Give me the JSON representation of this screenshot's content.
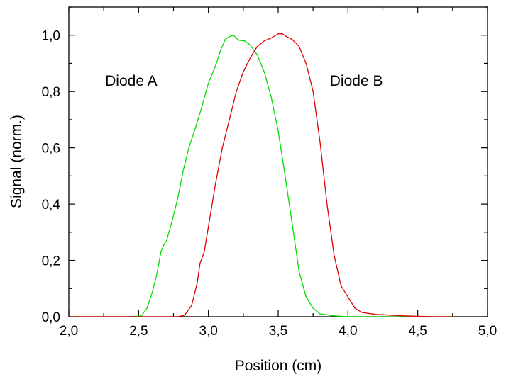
{
  "chart_data": {
    "type": "line",
    "title": "",
    "xlabel": "Position (cm)",
    "ylabel": "Signal (norm.)",
    "xlim": [
      2.0,
      5.0
    ],
    "ylim": [
      0.0,
      1.1
    ],
    "x_ticks": [
      "2,0",
      "2,5",
      "3,0",
      "3,5",
      "4,0",
      "4,5",
      "5,0"
    ],
    "x_tick_values": [
      2.0,
      2.5,
      3.0,
      3.5,
      4.0,
      4.5,
      5.0
    ],
    "y_ticks": [
      "0,0",
      "0,2",
      "0,4",
      "0,6",
      "0,8",
      "1,0"
    ],
    "y_tick_values": [
      0.0,
      0.2,
      0.4,
      0.6,
      0.8,
      1.0
    ],
    "grid": false,
    "series": [
      {
        "name": "Diode A",
        "color": "#00dd00",
        "points": [
          [
            2.0,
            0.0
          ],
          [
            2.45,
            0.0
          ],
          [
            2.52,
            0.003
          ],
          [
            2.56,
            0.03
          ],
          [
            2.6,
            0.09
          ],
          [
            2.63,
            0.15
          ],
          [
            2.66,
            0.23
          ],
          [
            2.68,
            0.255
          ],
          [
            2.7,
            0.27
          ],
          [
            2.74,
            0.34
          ],
          [
            2.78,
            0.42
          ],
          [
            2.82,
            0.52
          ],
          [
            2.86,
            0.6
          ],
          [
            2.9,
            0.66
          ],
          [
            2.95,
            0.74
          ],
          [
            3.0,
            0.83
          ],
          [
            3.05,
            0.89
          ],
          [
            3.09,
            0.95
          ],
          [
            3.12,
            0.985
          ],
          [
            3.15,
            0.995
          ],
          [
            3.18,
            1.0
          ],
          [
            3.2,
            0.99
          ],
          [
            3.22,
            0.982
          ],
          [
            3.26,
            0.98
          ],
          [
            3.3,
            0.965
          ],
          [
            3.35,
            0.93
          ],
          [
            3.4,
            0.87
          ],
          [
            3.45,
            0.78
          ],
          [
            3.5,
            0.66
          ],
          [
            3.55,
            0.5
          ],
          [
            3.6,
            0.33
          ],
          [
            3.65,
            0.16
          ],
          [
            3.7,
            0.07
          ],
          [
            3.75,
            0.03
          ],
          [
            3.8,
            0.01
          ],
          [
            3.9,
            0.003
          ],
          [
            4.0,
            0.0
          ],
          [
            4.75,
            0.0
          ]
        ],
        "label": {
          "text": "Diode A",
          "x": 2.26,
          "y": 0.82
        }
      },
      {
        "name": "Diode B",
        "color": "#dd0000",
        "points": [
          [
            2.0,
            0.0
          ],
          [
            2.78,
            0.0
          ],
          [
            2.83,
            0.005
          ],
          [
            2.88,
            0.04
          ],
          [
            2.92,
            0.12
          ],
          [
            2.94,
            0.19
          ],
          [
            2.97,
            0.23
          ],
          [
            3.0,
            0.32
          ],
          [
            3.05,
            0.47
          ],
          [
            3.1,
            0.6
          ],
          [
            3.15,
            0.7
          ],
          [
            3.2,
            0.8
          ],
          [
            3.25,
            0.87
          ],
          [
            3.3,
            0.92
          ],
          [
            3.35,
            0.96
          ],
          [
            3.4,
            0.98
          ],
          [
            3.45,
            0.99
          ],
          [
            3.5,
            1.005
          ],
          [
            3.53,
            1.005
          ],
          [
            3.56,
            0.995
          ],
          [
            3.6,
            0.985
          ],
          [
            3.65,
            0.96
          ],
          [
            3.7,
            0.9
          ],
          [
            3.75,
            0.8
          ],
          [
            3.8,
            0.62
          ],
          [
            3.85,
            0.4
          ],
          [
            3.9,
            0.22
          ],
          [
            3.95,
            0.11
          ],
          [
            4.0,
            0.07
          ],
          [
            4.05,
            0.03
          ],
          [
            4.1,
            0.015
          ],
          [
            4.2,
            0.008
          ],
          [
            4.4,
            0.003
          ],
          [
            4.6,
            0.0
          ],
          [
            4.75,
            0.0
          ]
        ],
        "label": {
          "text": "Diode B",
          "x": 3.87,
          "y": 0.82
        }
      }
    ]
  }
}
